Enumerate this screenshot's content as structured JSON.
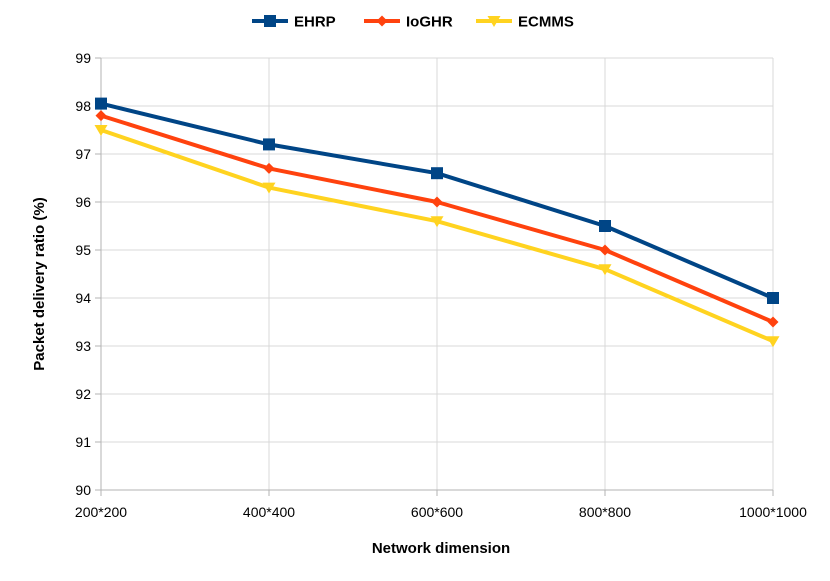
{
  "chart_data": {
    "type": "line",
    "title": "",
    "xlabel": "Network dimension",
    "ylabel": "Packet delivery ratio (%)",
    "categories": [
      "200*200",
      "400*400",
      "600*600",
      "800*800",
      "1000*1000"
    ],
    "ylim": [
      90,
      99
    ],
    "ystep": 1,
    "grid": true,
    "legend": "top",
    "series": [
      {
        "name": "EHRP",
        "color": "#004586",
        "marker": "square",
        "values": [
          98.05,
          97.2,
          96.6,
          95.5,
          94.0
        ]
      },
      {
        "name": "IoGHR",
        "color": "#ff420e",
        "marker": "diamond",
        "values": [
          97.8,
          96.7,
          96.0,
          95.0,
          93.5
        ]
      },
      {
        "name": "ECMMS",
        "color": "#ffd320",
        "marker": "triangle",
        "values": [
          97.5,
          96.3,
          95.6,
          94.6,
          93.1
        ]
      }
    ]
  }
}
